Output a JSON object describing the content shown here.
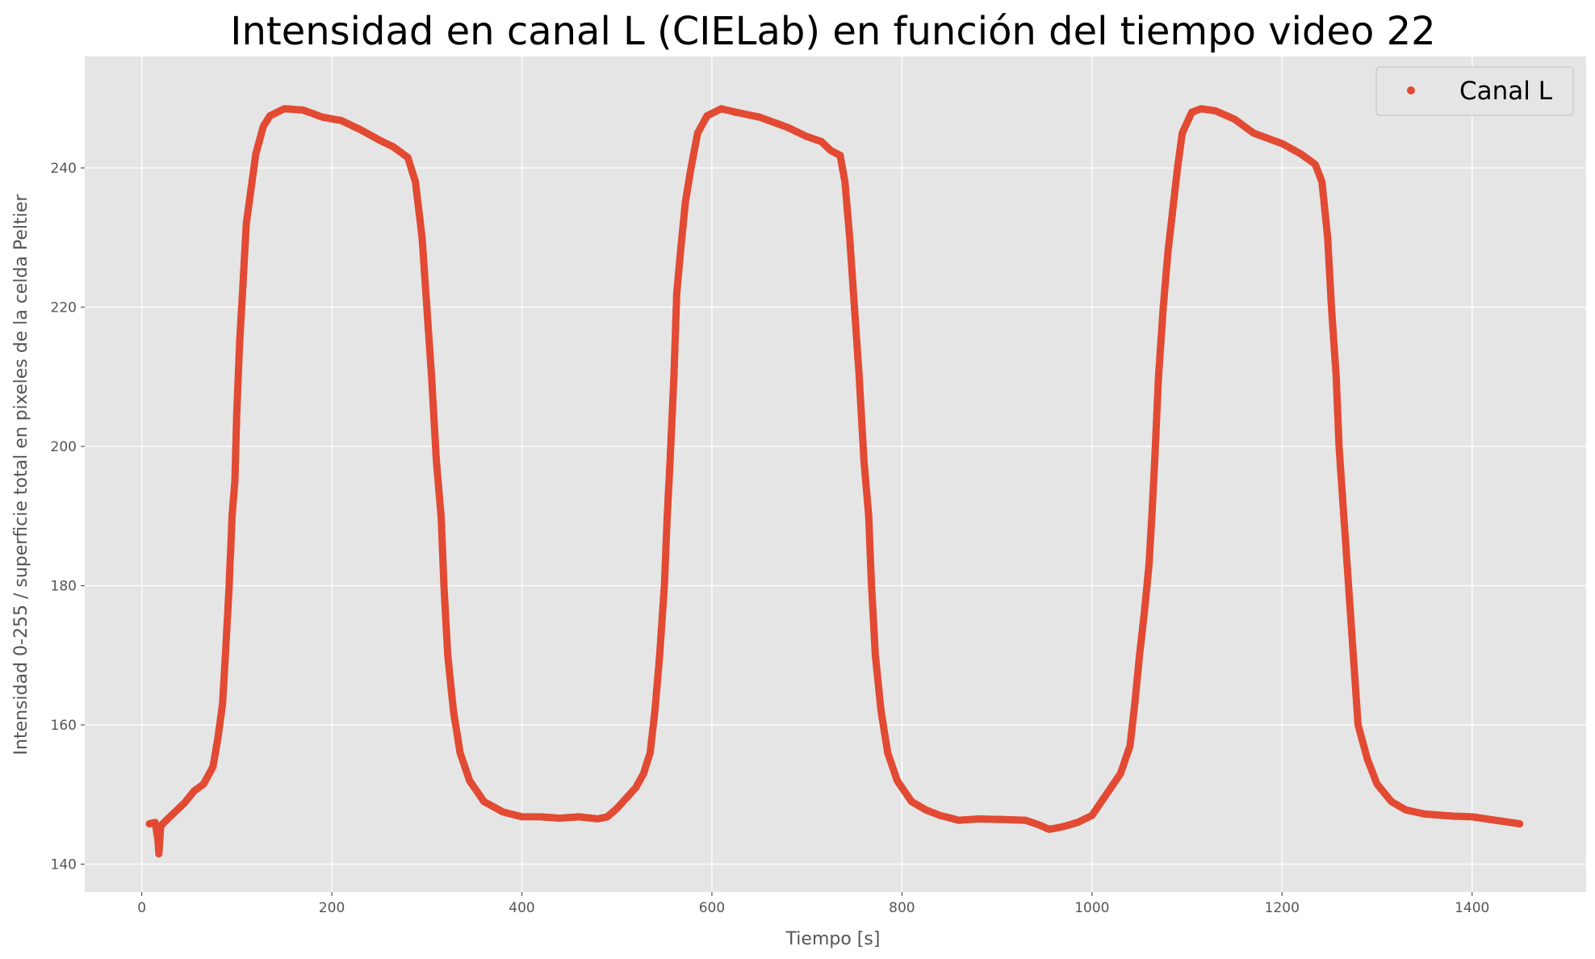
{
  "chart_data": {
    "type": "scatter",
    "title": "Intensidad en canal L (CIELab) en función del tiempo video 22",
    "xlabel": "Tiempo [s]",
    "ylabel": "Intensidad 0-255 / superficie total en pixeles de la celda Peltier",
    "xlim": [
      -60,
      1520
    ],
    "ylim": [
      136,
      256
    ],
    "xticks": [
      0,
      200,
      400,
      600,
      800,
      1000,
      1200,
      1400
    ],
    "yticks": [
      140,
      160,
      180,
      200,
      220,
      240
    ],
    "grid": true,
    "legend_position": "top-right",
    "background": "#e5e5e5",
    "series": [
      {
        "name": "Canal L",
        "color": "#e24a33",
        "marker": "circle",
        "points": [
          [
            8,
            145.8
          ],
          [
            14,
            146.0
          ],
          [
            17,
            143.5
          ],
          [
            18,
            141.5
          ],
          [
            20,
            145.5
          ],
          [
            25,
            146.2
          ],
          [
            35,
            147.5
          ],
          [
            45,
            148.8
          ],
          [
            55,
            150.5
          ],
          [
            65,
            151.5
          ],
          [
            75,
            154.0
          ],
          [
            80,
            158.0
          ],
          [
            85,
            163.0
          ],
          [
            88,
            170.0
          ],
          [
            92,
            180.0
          ],
          [
            95,
            190.0
          ],
          [
            98,
            195.0
          ],
          [
            100,
            205.0
          ],
          [
            103,
            215.0
          ],
          [
            106,
            222.0
          ],
          [
            110,
            232.0
          ],
          [
            115,
            237.0
          ],
          [
            120,
            242.0
          ],
          [
            128,
            246.0
          ],
          [
            135,
            247.5
          ],
          [
            150,
            248.5
          ],
          [
            170,
            248.3
          ],
          [
            190,
            247.3
          ],
          [
            210,
            246.8
          ],
          [
            230,
            245.5
          ],
          [
            250,
            244.0
          ],
          [
            265,
            243.0
          ],
          [
            280,
            241.5
          ],
          [
            288,
            238.0
          ],
          [
            295,
            230.0
          ],
          [
            300,
            220.0
          ],
          [
            305,
            210.0
          ],
          [
            310,
            198.0
          ],
          [
            315,
            190.0
          ],
          [
            318,
            180.0
          ],
          [
            322,
            170.0
          ],
          [
            328,
            162.0
          ],
          [
            335,
            156.0
          ],
          [
            345,
            152.0
          ],
          [
            360,
            149.0
          ],
          [
            380,
            147.5
          ],
          [
            400,
            146.8
          ],
          [
            420,
            146.8
          ],
          [
            440,
            146.6
          ],
          [
            460,
            146.8
          ],
          [
            480,
            146.5
          ],
          [
            490,
            146.8
          ],
          [
            500,
            148.0
          ],
          [
            510,
            149.5
          ],
          [
            520,
            151.0
          ],
          [
            528,
            153.0
          ],
          [
            535,
            156.0
          ],
          [
            540,
            162.0
          ],
          [
            545,
            170.0
          ],
          [
            550,
            180.0
          ],
          [
            553,
            190.0
          ],
          [
            556,
            198.0
          ],
          [
            560,
            210.0
          ],
          [
            563,
            222.0
          ],
          [
            567,
            228.0
          ],
          [
            572,
            235.0
          ],
          [
            578,
            240.0
          ],
          [
            585,
            245.0
          ],
          [
            595,
            247.5
          ],
          [
            610,
            248.5
          ],
          [
            625,
            248.0
          ],
          [
            650,
            247.3
          ],
          [
            680,
            245.8
          ],
          [
            700,
            244.5
          ],
          [
            715,
            243.8
          ],
          [
            725,
            242.5
          ],
          [
            735,
            241.8
          ],
          [
            740,
            238.0
          ],
          [
            745,
            230.0
          ],
          [
            750,
            220.0
          ],
          [
            755,
            210.0
          ],
          [
            760,
            198.0
          ],
          [
            765,
            190.0
          ],
          [
            768,
            180.0
          ],
          [
            772,
            170.0
          ],
          [
            778,
            162.0
          ],
          [
            785,
            156.0
          ],
          [
            795,
            152.0
          ],
          [
            810,
            149.0
          ],
          [
            825,
            147.8
          ],
          [
            840,
            147.0
          ],
          [
            860,
            146.3
          ],
          [
            880,
            146.5
          ],
          [
            910,
            146.4
          ],
          [
            930,
            146.3
          ],
          [
            945,
            145.6
          ],
          [
            955,
            145.0
          ],
          [
            970,
            145.4
          ],
          [
            985,
            146.0
          ],
          [
            1000,
            147.0
          ],
          [
            1010,
            149.0
          ],
          [
            1020,
            151.0
          ],
          [
            1030,
            153.0
          ],
          [
            1040,
            157.0
          ],
          [
            1045,
            163.0
          ],
          [
            1050,
            170.0
          ],
          [
            1055,
            176.0
          ],
          [
            1060,
            183.0
          ],
          [
            1063,
            190.0
          ],
          [
            1066,
            198.0
          ],
          [
            1070,
            210.0
          ],
          [
            1075,
            220.0
          ],
          [
            1080,
            228.0
          ],
          [
            1085,
            234.0
          ],
          [
            1090,
            240.0
          ],
          [
            1095,
            245.0
          ],
          [
            1105,
            248.0
          ],
          [
            1115,
            248.5
          ],
          [
            1130,
            248.2
          ],
          [
            1150,
            247.0
          ],
          [
            1170,
            245.0
          ],
          [
            1200,
            243.5
          ],
          [
            1220,
            242.0
          ],
          [
            1235,
            240.5
          ],
          [
            1242,
            238.0
          ],
          [
            1248,
            230.0
          ],
          [
            1252,
            220.0
          ],
          [
            1257,
            210.0
          ],
          [
            1260,
            200.0
          ],
          [
            1265,
            190.0
          ],
          [
            1270,
            180.0
          ],
          [
            1275,
            170.0
          ],
          [
            1280,
            160.0
          ],
          [
            1290,
            155.0
          ],
          [
            1300,
            151.5
          ],
          [
            1315,
            149.0
          ],
          [
            1330,
            147.8
          ],
          [
            1350,
            147.2
          ],
          [
            1380,
            146.9
          ],
          [
            1400,
            146.8
          ],
          [
            1420,
            146.4
          ],
          [
            1440,
            146.0
          ],
          [
            1450,
            145.8
          ]
        ]
      }
    ]
  }
}
